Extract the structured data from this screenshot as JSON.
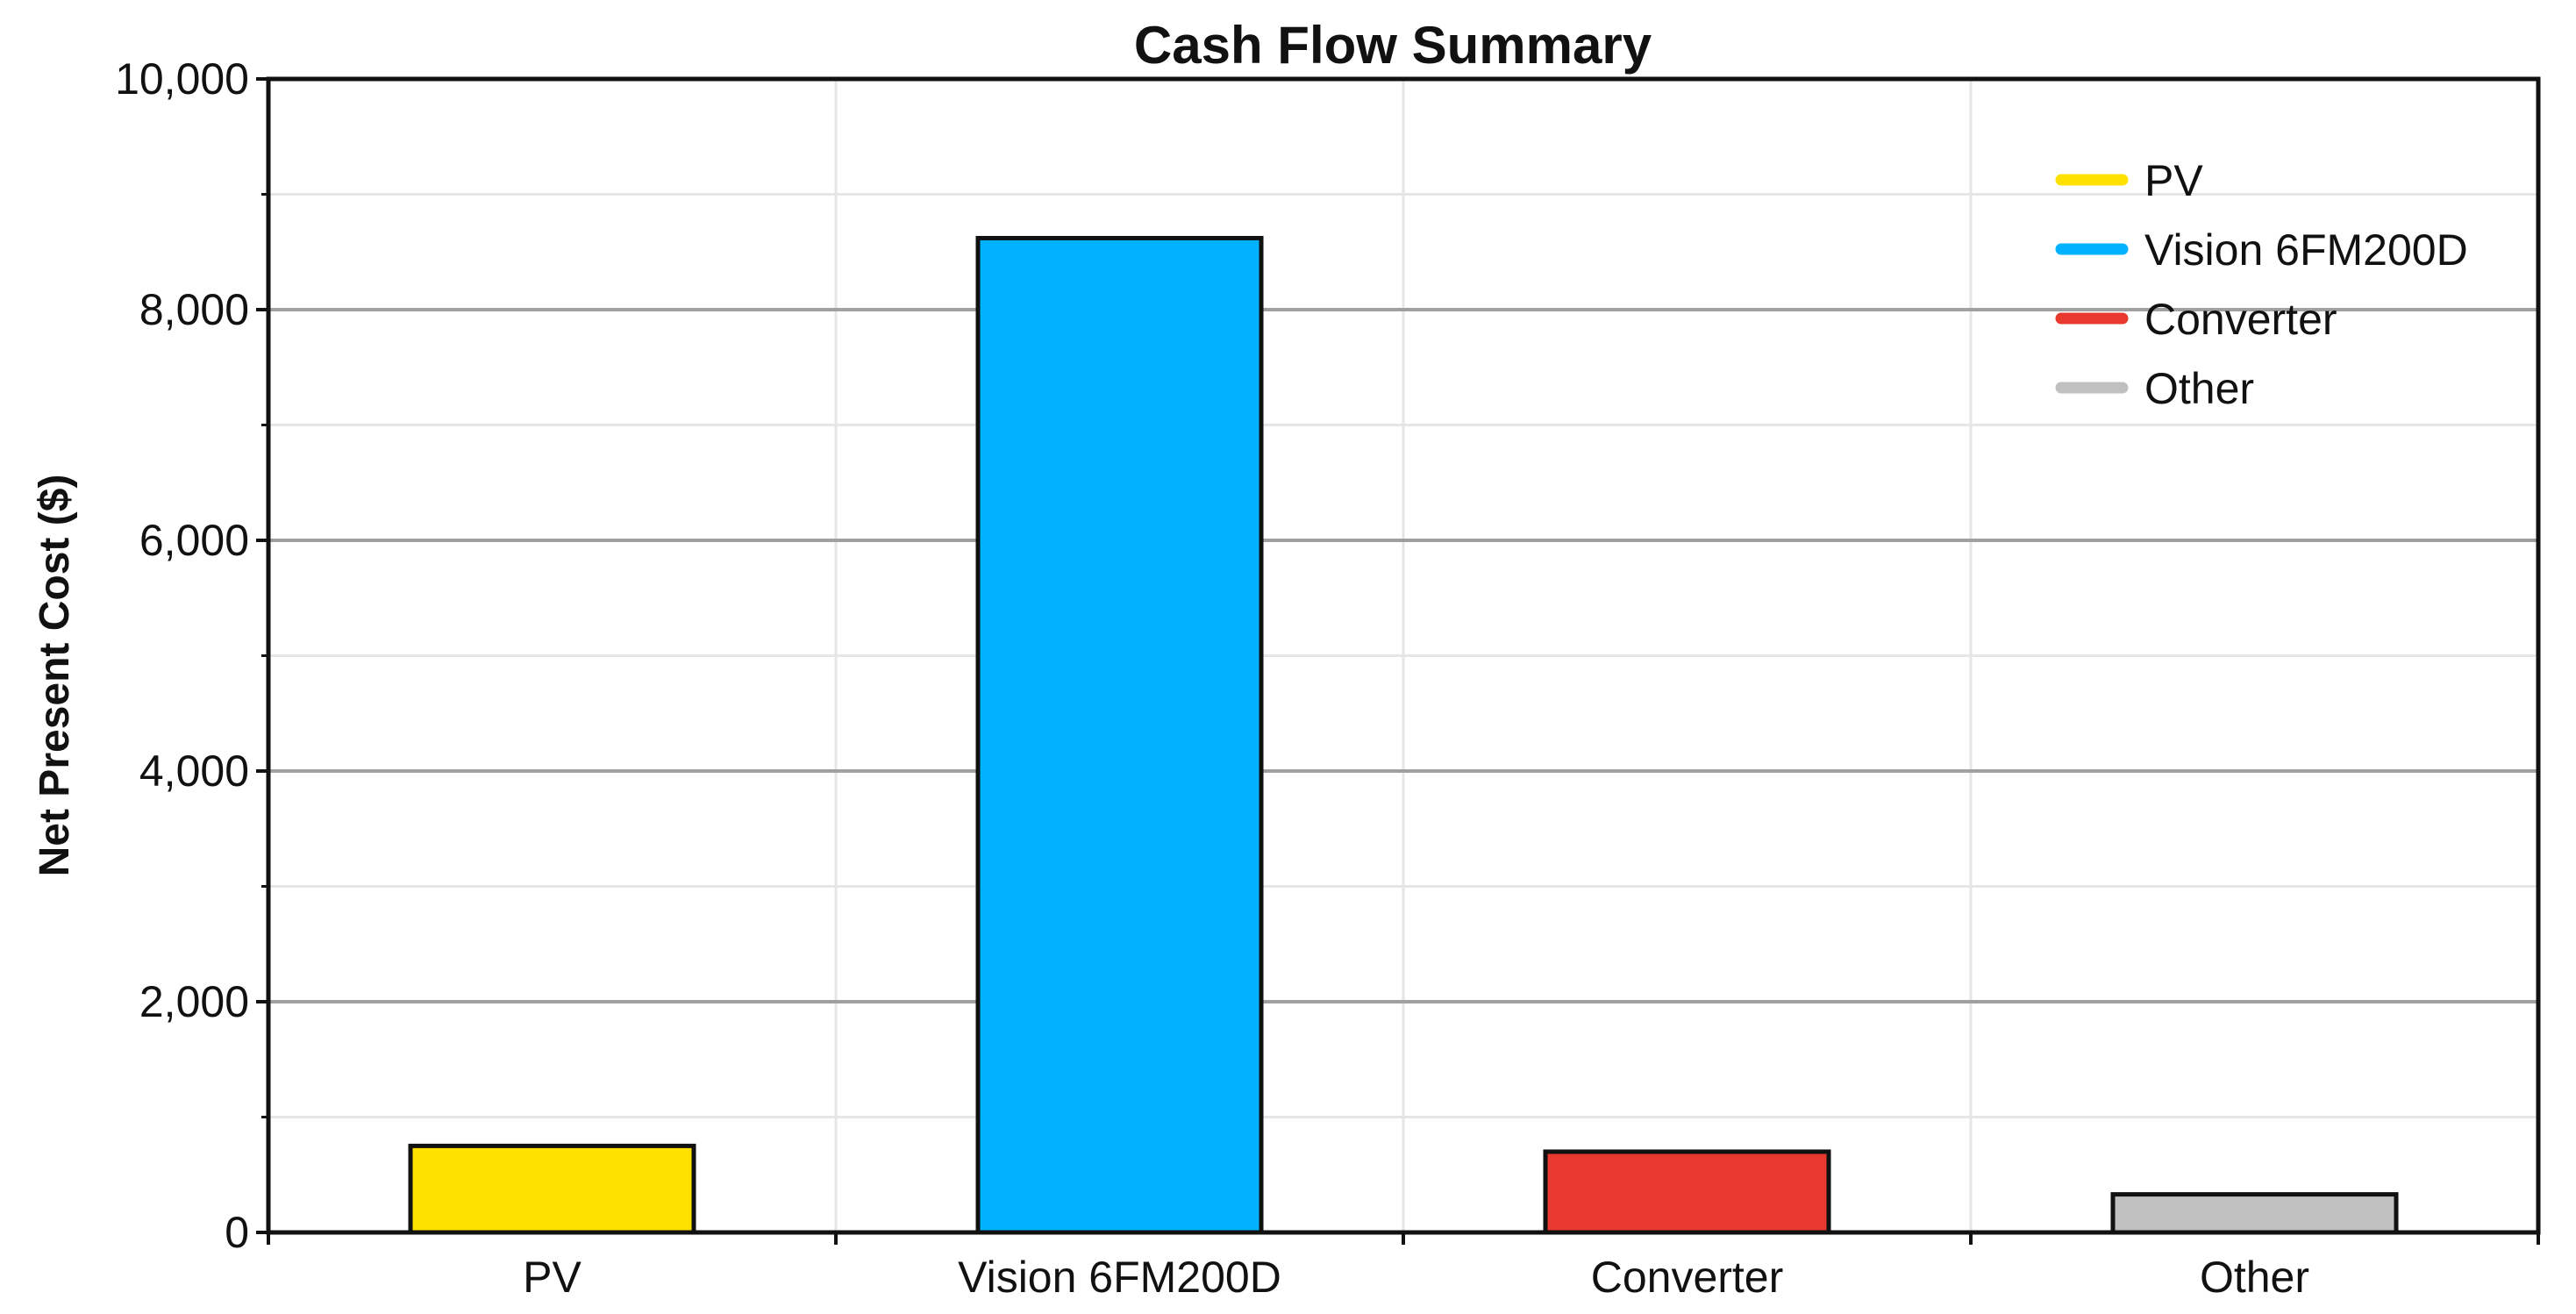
{
  "chart_data": {
    "type": "bar",
    "title": "Cash Flow Summary",
    "xlabel": "",
    "ylabel": "Net Present Cost ($)",
    "categories": [
      "PV",
      "Vision 6FM200D",
      "Converter",
      "Other"
    ],
    "values": [
      750,
      8620,
      700,
      330
    ],
    "colors": [
      "#FFE100",
      "#00B2FF",
      "#E8392F",
      "#C0C0C0"
    ],
    "ylim": [
      0,
      10000
    ],
    "yticks": [
      0,
      2000,
      4000,
      6000,
      8000,
      10000
    ],
    "ytick_labels": [
      "0",
      "2,000",
      "4,000",
      "6,000",
      "8,000",
      "10,000"
    ],
    "grid": true,
    "legend": {
      "placement": "top-right",
      "entries": [
        {
          "label": "PV",
          "color": "#FFE100"
        },
        {
          "label": "Vision 6FM200D",
          "color": "#00B2FF"
        },
        {
          "label": "Converter",
          "color": "#E8392F"
        },
        {
          "label": "Other",
          "color": "#C0C0C0"
        }
      ]
    }
  }
}
